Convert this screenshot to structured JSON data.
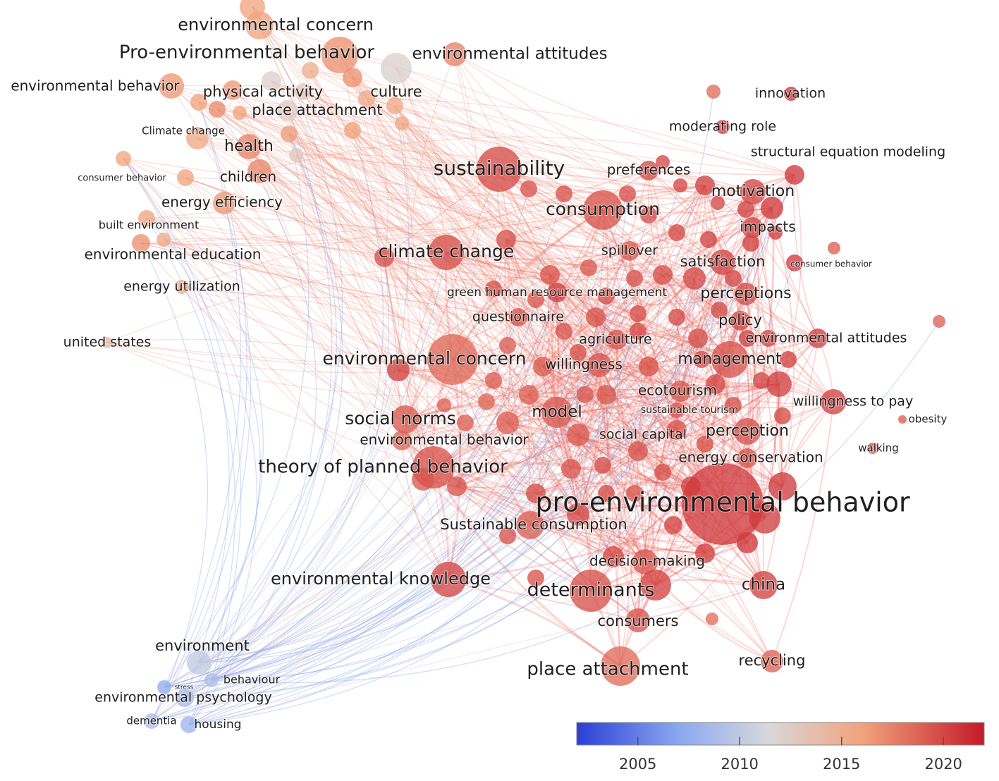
{
  "title": "",
  "colors": {
    "scale": [
      "#2b3fd6",
      "#8aa8f0",
      "#d8d8dc",
      "#f2a37c",
      "#c41a2a"
    ],
    "edge_red": "#ea5148",
    "edge_blue": "#7f9ce6"
  },
  "nodes": [
    {
      "id": "pro-environmental-behavior-main",
      "label": "pro-environmental behavior",
      "year": 2020.6
    },
    {
      "id": "sustainability",
      "label": "sustainability",
      "year": 2019.8
    },
    {
      "id": "consumption",
      "label": "consumption",
      "year": 2019.5
    },
    {
      "id": "climate-change",
      "label": "climate change",
      "year": 2019.7
    },
    {
      "id": "environmental-concern-center",
      "label": "environmental concern",
      "year": 2018.6
    },
    {
      "id": "theory-of-planned-behavior",
      "label": "theory of planned behavior",
      "year": 2019.5
    },
    {
      "id": "social-norms",
      "label": "social norms",
      "year": 2019.2
    },
    {
      "id": "environmental-knowledge",
      "label": "environmental knowledge",
      "year": 2020.0
    },
    {
      "id": "determinants",
      "label": "determinants",
      "year": 2019.6
    },
    {
      "id": "place-attachment-lower",
      "label": "place attachment",
      "year": 2018.4
    },
    {
      "id": "china",
      "label": "china",
      "year": 2020.2
    },
    {
      "id": "recycling",
      "label": "recycling",
      "year": 2018.9
    },
    {
      "id": "consumers",
      "label": "consumers",
      "year": 2019.4
    },
    {
      "id": "decision-making",
      "label": "decision-making",
      "year": 2019.3
    },
    {
      "id": "sustainable-consumption",
      "label": "Sustainable consumption",
      "year": 2019.0
    },
    {
      "id": "model",
      "label": "model",
      "year": 2019.2
    },
    {
      "id": "environmental-behavior-center",
      "label": "environmental behavior",
      "year": 2018.6
    },
    {
      "id": "management",
      "label": "management",
      "year": 2019.5
    },
    {
      "id": "willingness",
      "label": "willingness",
      "year": 2019.4
    },
    {
      "id": "ecotourism",
      "label": "ecotourism",
      "year": 2019.1
    },
    {
      "id": "sustainable-tourism",
      "label": "sustainable tourism",
      "year": 2019.4
    },
    {
      "id": "social-capital",
      "label": "social capital",
      "year": 2019.3
    },
    {
      "id": "perception",
      "label": "perception",
      "year": 2019.6
    },
    {
      "id": "energy-conservation",
      "label": "energy conservation",
      "year": 2019.5
    },
    {
      "id": "agriculture",
      "label": "agriculture",
      "year": 2019.6
    },
    {
      "id": "questionnaire",
      "label": "questionnaire",
      "year": 2019.5
    },
    {
      "id": "green-hrm",
      "label": "green human resource management",
      "year": 2020.4
    },
    {
      "id": "spillover",
      "label": "spillover",
      "year": 2019.2
    },
    {
      "id": "satisfaction",
      "label": "satisfaction",
      "year": 2020.1
    },
    {
      "id": "perceptions",
      "label": "perceptions",
      "year": 2019.9
    },
    {
      "id": "policy",
      "label": "policy",
      "year": 2020.0
    },
    {
      "id": "environmental-attitudes-right",
      "label": "environmental attitudes",
      "year": 2020.4
    },
    {
      "id": "willingness-to-pay",
      "label": "willingness to pay",
      "year": 2020.2
    },
    {
      "id": "obesity",
      "label": "obesity",
      "year": 2019.0
    },
    {
      "id": "walking",
      "label": "walking",
      "year": 2019.5
    },
    {
      "id": "impacts",
      "label": "impacts",
      "year": 2020.2
    },
    {
      "id": "motivation",
      "label": "motivation",
      "year": 2020.1
    },
    {
      "id": "consumer-behavior-right",
      "label": "consumer behavior",
      "year": 2020.5
    },
    {
      "id": "preferences",
      "label": "preferences",
      "year": 2019.8
    },
    {
      "id": "structural-equation-modeling",
      "label": "structural equation modeling",
      "year": 2020.6
    },
    {
      "id": "moderating-role",
      "label": "moderating role",
      "year": 2020.7
    },
    {
      "id": "innovation",
      "label": "innovation",
      "year": 2020.9
    },
    {
      "id": "environmental-concern-top",
      "label": "environmental concern",
      "year": 2015.8
    },
    {
      "id": "pro-environmental-behavior-top",
      "label": "Pro-environmental behavior",
      "year": 2016.8
    },
    {
      "id": "environmental-attitudes-top",
      "label": "environmental attitudes",
      "year": 2017.4
    },
    {
      "id": "culture",
      "label": "culture",
      "year": 2012.0
    },
    {
      "id": "physical-activity",
      "label": "physical activity",
      "year": 2016.5
    },
    {
      "id": "place-attachment-top",
      "label": "place attachment",
      "year": 2012.5
    },
    {
      "id": "environmental-behavior-top",
      "label": "environmental behavior",
      "year": 2016.5
    },
    {
      "id": "climate-change-small",
      "label": "Climate change",
      "year": 2015.5
    },
    {
      "id": "health",
      "label": "health",
      "year": 2017.3
    },
    {
      "id": "children",
      "label": "children",
      "year": 2017.2
    },
    {
      "id": "consumer-behavior-left",
      "label": "consumer behavior",
      "year": 2015.8
    },
    {
      "id": "energy-efficiency",
      "label": "energy efficiency",
      "year": 2016.5
    },
    {
      "id": "built-environment",
      "label": "built environment",
      "year": 2015.8
    },
    {
      "id": "environmental-education",
      "label": "environmental education",
      "year": 2016.8
    },
    {
      "id": "energy-utilization",
      "label": "energy utilization",
      "year": 2015.2
    },
    {
      "id": "united-states",
      "label": "united states",
      "year": 2013.8
    },
    {
      "id": "environment",
      "label": "environment",
      "year": 2010.0
    },
    {
      "id": "behaviour",
      "label": "behaviour",
      "year": 2009.0
    },
    {
      "id": "stress",
      "label": "stress",
      "year": 2007.5
    },
    {
      "id": "environmental-psychology",
      "label": "environmental psychology",
      "year": 2008.5
    },
    {
      "id": "dementia",
      "label": "dementia",
      "year": 2009.0
    },
    {
      "id": "housing",
      "label": "housing",
      "year": 2008.0
    }
  ],
  "legend": {
    "ticks": [
      "2005",
      "2010",
      "2015",
      "2020"
    ],
    "tick_values": [
      2005,
      2010,
      2015,
      2020
    ],
    "min": 2002,
    "max": 2022
  }
}
